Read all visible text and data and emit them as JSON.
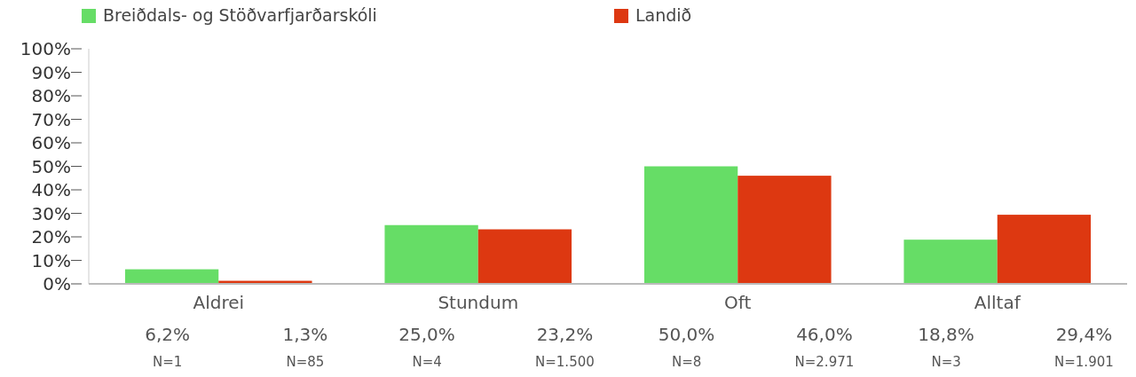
{
  "chart_data": {
    "type": "bar",
    "categories": [
      "Aldrei",
      "Stundum",
      "Oft",
      "Alltaf"
    ],
    "series": [
      {
        "name": "Breiðdals- og Stöðvarfjarðarskóli",
        "color": "#66dd66",
        "values": [
          6.2,
          25.0,
          50.0,
          18.8
        ],
        "value_labels": [
          "6,2%",
          "25,0%",
          "50,0%",
          "18,8%"
        ]
      },
      {
        "name": "Landið",
        "color": "#dd3811",
        "values": [
          1.3,
          23.2,
          46.0,
          29.4
        ],
        "value_labels": [
          "1,3%",
          "23,2%",
          "46,0%",
          "29,4%"
        ]
      }
    ],
    "annotations": [
      "N=1",
      "N=85",
      "N=4",
      "N=1.500",
      "N=8",
      "N=2.971",
      "N=3",
      "N=1.901"
    ],
    "ylim": [
      0,
      100
    ],
    "yticks": [
      {
        "value": 0,
        "label": "0%"
      },
      {
        "value": 10,
        "label": "10%"
      },
      {
        "value": 20,
        "label": "20%"
      },
      {
        "value": 30,
        "label": "30%"
      },
      {
        "value": 40,
        "label": "40%"
      },
      {
        "value": 50,
        "label": "50%"
      },
      {
        "value": 60,
        "label": "60%"
      },
      {
        "value": 70,
        "label": "70%"
      },
      {
        "value": 80,
        "label": "80%"
      },
      {
        "value": 90,
        "label": "90%"
      },
      {
        "value": 100,
        "label": "100%"
      }
    ],
    "grid": false,
    "legend": "top"
  }
}
